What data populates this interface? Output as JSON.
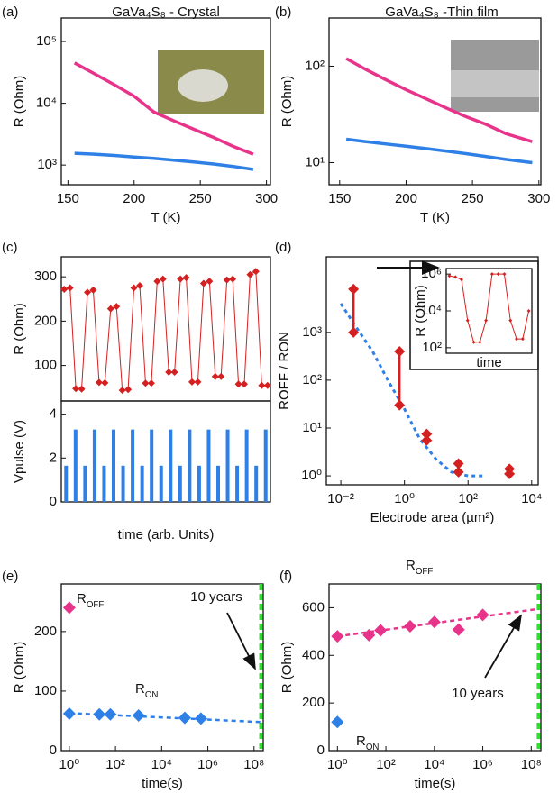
{
  "chart_data": [
    {
      "type": "line",
      "panel_label": "(a)",
      "title": "GaVa₄S₈ - Crystal",
      "xlabel": "T (K)",
      "ylabel": "R (Ohm)",
      "xlim": [
        145,
        303
      ],
      "xticks": [
        150,
        200,
        250,
        300
      ],
      "log_y": true,
      "ylim": [
        480,
        240000
      ],
      "yticks": [
        {
          "value": 1000,
          "label": "10³"
        },
        {
          "value": 10000,
          "label": "10⁴"
        },
        {
          "value": 100000,
          "label": "10⁵"
        }
      ],
      "series": [
        {
          "color": "#e8338b",
          "x": [
            155,
            170,
            185,
            200,
            215,
            230,
            245,
            260,
            275,
            290
          ],
          "values": [
            45000,
            30000,
            20000,
            13000,
            7200,
            5200,
            3800,
            2800,
            2000,
            1500
          ]
        },
        {
          "color": "#2f80e6",
          "x": [
            155,
            170,
            185,
            200,
            215,
            230,
            245,
            260,
            275,
            290
          ],
          "values": [
            1550,
            1500,
            1430,
            1350,
            1280,
            1200,
            1120,
            1040,
            950,
            850
          ]
        }
      ]
    },
    {
      "type": "line",
      "panel_label": "(b)",
      "title": "GaVa₄S₈ -Thin film",
      "xlabel": "T (K)",
      "ylabel": "R (Ohm)",
      "xlim": [
        142,
        301.5
      ],
      "xticks": [
        150,
        200,
        250,
        300
      ],
      "log_y": true,
      "ylim": [
        5.9,
        316
      ],
      "yticks": [
        {
          "value": 10,
          "label": "10¹"
        },
        {
          "value": 100,
          "label": "10²"
        }
      ],
      "series": [
        {
          "color": "#e8338b",
          "x": [
            155,
            170,
            185,
            200,
            215,
            230,
            245,
            260,
            275,
            295
          ],
          "values": [
            120,
            92,
            72,
            57,
            46,
            37,
            30,
            25,
            20,
            16.5
          ]
        },
        {
          "color": "#2f80e6",
          "x": [
            155,
            170,
            185,
            200,
            215,
            230,
            245,
            260,
            275,
            295
          ],
          "values": [
            17.5,
            16.5,
            15.6,
            14.8,
            14,
            13.2,
            12.4,
            11.6,
            10.8,
            10
          ]
        }
      ]
    },
    {
      "type": "line",
      "panel_label": "(c)",
      "ylabel": "R (Ohm)",
      "ylim": [
        20,
        345
      ],
      "yticks": [
        100,
        200,
        300
      ],
      "markers": true,
      "series": [
        {
          "color": "#d42020",
          "values": [
            272,
            275,
            48,
            47,
            265,
            270,
            62,
            61,
            228,
            233,
            44,
            46,
            275,
            280,
            60,
            60,
            290,
            295,
            85,
            85,
            295,
            298,
            63,
            63,
            285,
            290,
            75,
            75,
            293,
            295,
            58,
            58,
            305,
            312,
            55,
            55
          ]
        }
      ]
    },
    {
      "type": "bar",
      "ylabel": "Vpulse (V)",
      "xlabel": "time (arb. Units)",
      "ylim": [
        0,
        4.6
      ],
      "yticks": [
        0,
        2,
        4
      ],
      "color": "#2f80e6",
      "values": [
        1.65,
        3.3,
        1.65,
        3.3,
        1.65,
        3.3,
        1.65,
        3.3,
        1.65,
        3.3,
        1.65,
        3.3,
        1.65,
        3.3,
        1.65,
        3.3,
        1.65,
        3.3,
        1.65,
        3.3,
        1.65,
        3.3
      ]
    },
    {
      "type": "range",
      "panel_label": "(d)",
      "xlabel": "Electrode area (µm²)",
      "ylabel": "ROFF / RON",
      "log_x": true,
      "log_y": true,
      "xlim": [
        0.0035,
        16000
      ],
      "xticks": [
        {
          "value": 0.01,
          "label": "10⁻²"
        },
        {
          "value": 1,
          "label": "10⁰"
        },
        {
          "value": 100,
          "label": "10²"
        },
        {
          "value": 10000,
          "label": "10⁴"
        }
      ],
      "ylim": [
        0.65,
        38000
      ],
      "yticks": [
        {
          "value": 1,
          "label": "10⁰"
        },
        {
          "value": 10,
          "label": "10¹"
        },
        {
          "value": 100,
          "label": "10²"
        },
        {
          "value": 1000,
          "label": "10³"
        }
      ],
      "color": "#d42020",
      "x": [
        0.025,
        0.7,
        5,
        50,
        2000
      ],
      "low": [
        1000,
        30,
        5.5,
        1.2,
        1.1
      ],
      "high": [
        8000,
        400,
        7.5,
        1.8,
        1.4
      ],
      "fit": {
        "color": "#2f80e6",
        "x": [
          0.01,
          0.03,
          0.1,
          0.3,
          1,
          3,
          10,
          30,
          100,
          300
        ],
        "values": [
          4000,
          1300,
          400,
          100,
          25,
          6,
          2.2,
          1.2,
          1.0,
          1.0
        ]
      }
    },
    {
      "type": "line",
      "xlabel": "time",
      "ylabel": "R (Ohm)",
      "log_y": true,
      "ylim": [
        50,
        2000000
      ],
      "markers": true,
      "yticks": [
        {
          "value": 100,
          "label": "10²"
        },
        {
          "value": 10000,
          "label": "10⁴"
        },
        {
          "value": 1000000,
          "label": "10⁶"
        }
      ],
      "series": [
        {
          "color": "#d42020",
          "values": [
            800000,
            700000,
            500000,
            3000,
            200,
            200,
            3000,
            1000000,
            1000000,
            1000000,
            3000,
            300,
            300,
            10000
          ]
        }
      ]
    },
    {
      "type": "scatter",
      "panel_label": "(e)",
      "xlabel": "time(s)",
      "ylabel": "R (Ohm)",
      "log_x": true,
      "xlim": [
        0.45,
        250000000
      ],
      "xticks": [
        {
          "value": 1,
          "label": "10⁰"
        },
        {
          "value": 100,
          "label": "10²"
        },
        {
          "value": 10000,
          "label": "10⁴"
        },
        {
          "value": 1000000,
          "label": "10⁶"
        },
        {
          "value": 100000000,
          "label": "10⁸"
        }
      ],
      "ylim": [
        0,
        280
      ],
      "yticks": [
        0,
        100,
        200
      ],
      "series": [
        {
          "name": "ROFF",
          "color": "#e8338b",
          "x": [
            1
          ],
          "values": [
            240
          ]
        },
        {
          "name": "RON",
          "color": "#2f80e6",
          "x": [
            1,
            20,
            60,
            1000,
            100000,
            500000
          ],
          "values": [
            62,
            61,
            61,
            59,
            55,
            54
          ],
          "fit": {
            "x": [
              1,
              200000000
            ],
            "values": [
              63,
              48
            ]
          }
        }
      ],
      "vline": {
        "x": 200000000,
        "label": "10 years",
        "color": "#33dd33"
      }
    },
    {
      "type": "scatter",
      "panel_label": "(f)",
      "xlabel": "time(s)",
      "ylabel": "R (Ohm)",
      "log_x": true,
      "xlim": [
        0.45,
        250000000
      ],
      "xticks": [
        {
          "value": 1,
          "label": "10⁰"
        },
        {
          "value": 100,
          "label": "10²"
        },
        {
          "value": 10000,
          "label": "10⁴"
        },
        {
          "value": 1000000,
          "label": "10⁶"
        },
        {
          "value": 100000000,
          "label": "10⁸"
        }
      ],
      "ylim": [
        0,
        700
      ],
      "yticks": [
        0,
        200,
        400,
        600
      ],
      "series": [
        {
          "name": "ROFF",
          "color": "#e8338b",
          "x": [
            1,
            20,
            60,
            1000,
            10000,
            100000,
            1000000
          ],
          "values": [
            480,
            485,
            505,
            522,
            540,
            508,
            570
          ],
          "fit": {
            "x": [
              1,
              200000000
            ],
            "values": [
              480,
              595
            ]
          }
        },
        {
          "name": "RON",
          "color": "#2f80e6",
          "x": [
            1
          ],
          "values": [
            120
          ]
        }
      ],
      "vline": {
        "x": 200000000,
        "label": "10 years",
        "color": "#33dd33"
      }
    }
  ]
}
